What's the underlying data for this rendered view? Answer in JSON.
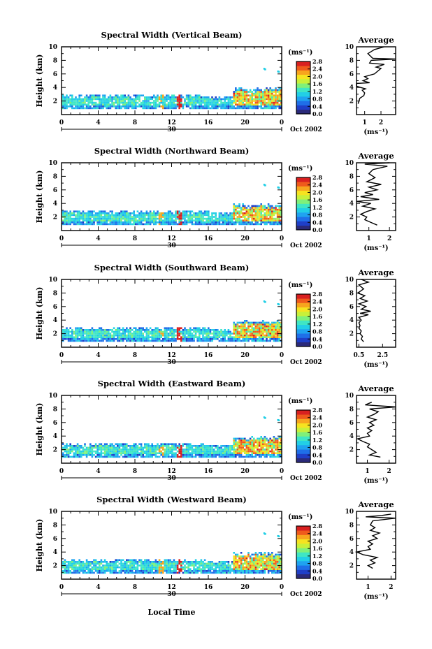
{
  "chart_data": {
    "type": "heatmap",
    "xlabel": "Local Time",
    "date_label": "Oct 2002",
    "day_label": "30",
    "x_ticks": [
      "0",
      "4",
      "8",
      "12",
      "16",
      "20",
      "0"
    ],
    "y_ticks": [
      "2",
      "4",
      "6",
      "8",
      "10"
    ],
    "ylabel": "Height (km)",
    "ylim": [
      0,
      10
    ],
    "xlim": [
      0,
      24
    ],
    "colorbar": {
      "unit_label": "(ms⁻¹)",
      "ticks": [
        "0.0",
        "0.4",
        "0.8",
        "1.2",
        "1.6",
        "2.0",
        "2.4",
        "2.8"
      ],
      "range": [
        0,
        2.8
      ]
    },
    "profile": {
      "title": "Average",
      "unit_label": "(ms⁻¹)"
    },
    "panels": [
      {
        "title": "Spectral Width (Vertical Beam)",
        "profile_ticks": [
          "1",
          "2"
        ],
        "profile_xlim": [
          0.5,
          2.9
        ],
        "profile": [
          [
            0.6,
            1.6
          ],
          [
            0.65,
            2.0
          ],
          [
            0.7,
            2.4
          ],
          [
            0.95,
            2.8
          ],
          [
            1.0,
            3.2
          ],
          [
            0.85,
            3.6
          ],
          [
            1.05,
            3.8
          ],
          [
            0.75,
            4.0
          ],
          [
            0.5,
            4.2
          ],
          [
            0.5,
            4.6
          ],
          [
            1.3,
            4.7
          ],
          [
            0.9,
            5.0
          ],
          [
            1.2,
            5.3
          ],
          [
            1.0,
            5.6
          ],
          [
            1.6,
            6.0
          ],
          [
            1.8,
            6.4
          ],
          [
            2.0,
            6.8
          ],
          [
            1.7,
            7.0
          ],
          [
            2.2,
            7.4
          ],
          [
            1.3,
            7.6
          ],
          [
            1.4,
            8.0
          ],
          [
            2.9,
            8.2
          ],
          [
            1.5,
            8.3
          ],
          [
            1.2,
            9.0
          ],
          [
            1.6,
            9.6
          ],
          [
            2.2,
            10.0
          ]
        ],
        "variant": 0
      },
      {
        "title": "Spectral Width (Northward Beam)",
        "profile_ticks": [
          "1",
          "2"
        ],
        "profile_xlim": [
          0.4,
          2.3
        ],
        "profile": [
          [
            1.4,
            0.8
          ],
          [
            1.1,
            1.2
          ],
          [
            0.8,
            1.6
          ],
          [
            0.9,
            2.0
          ],
          [
            0.6,
            2.4
          ],
          [
            0.9,
            2.8
          ],
          [
            1.3,
            3.2
          ],
          [
            0.7,
            3.6
          ],
          [
            1.1,
            4.0
          ],
          [
            0.4,
            4.3
          ],
          [
            1.5,
            4.6
          ],
          [
            0.6,
            5.0
          ],
          [
            1.2,
            5.3
          ],
          [
            0.8,
            5.6
          ],
          [
            1.4,
            6.0
          ],
          [
            1.0,
            6.4
          ],
          [
            1.6,
            6.8
          ],
          [
            0.9,
            7.2
          ],
          [
            1.3,
            7.8
          ],
          [
            1.0,
            8.4
          ],
          [
            1.2,
            9.0
          ],
          [
            1.9,
            9.5
          ],
          [
            0.8,
            9.8
          ],
          [
            2.0,
            10.0
          ]
        ],
        "variant": 1
      },
      {
        "title": "Spectral Width (Southward Beam)",
        "profile_ticks": [
          "0.5",
          "2.5"
        ],
        "profile_xlim": [
          0.3,
          3.6
        ],
        "profile": [
          [
            0.9,
            0.8
          ],
          [
            0.7,
            1.2
          ],
          [
            0.8,
            1.6
          ],
          [
            0.6,
            2.0
          ],
          [
            0.7,
            2.4
          ],
          [
            0.5,
            2.8
          ],
          [
            0.6,
            3.2
          ],
          [
            0.5,
            3.6
          ],
          [
            0.7,
            4.0
          ],
          [
            0.5,
            4.4
          ],
          [
            1.3,
            4.8
          ],
          [
            0.6,
            5.0
          ],
          [
            1.5,
            5.3
          ],
          [
            0.7,
            5.6
          ],
          [
            1.1,
            6.0
          ],
          [
            0.5,
            6.4
          ],
          [
            1.2,
            6.8
          ],
          [
            0.6,
            7.2
          ],
          [
            1.0,
            7.6
          ],
          [
            0.4,
            8.0
          ],
          [
            0.9,
            8.6
          ],
          [
            0.5,
            9.2
          ],
          [
            1.3,
            9.6
          ],
          [
            0.7,
            10.0
          ]
        ],
        "variant": 2
      },
      {
        "title": "Spectral Width (Eastward Beam)",
        "profile_ticks": [
          "1",
          "2"
        ],
        "profile_xlim": [
          0.5,
          2.3
        ],
        "profile": [
          [
            1.6,
            0.9
          ],
          [
            1.1,
            1.2
          ],
          [
            1.4,
            1.6
          ],
          [
            1.2,
            2.0
          ],
          [
            1.0,
            2.4
          ],
          [
            1.1,
            2.8
          ],
          [
            0.8,
            3.2
          ],
          [
            0.55,
            3.6
          ],
          [
            1.1,
            4.0
          ],
          [
            1.0,
            4.4
          ],
          [
            1.2,
            4.8
          ],
          [
            1.0,
            5.2
          ],
          [
            1.3,
            5.6
          ],
          [
            1.1,
            6.0
          ],
          [
            1.4,
            6.4
          ],
          [
            1.0,
            6.8
          ],
          [
            1.3,
            7.2
          ],
          [
            1.5,
            7.6
          ],
          [
            1.1,
            8.0
          ],
          [
            2.3,
            8.3
          ],
          [
            0.9,
            8.6
          ],
          [
            1.2,
            9.0
          ]
        ],
        "variant": 3
      },
      {
        "title": "Spectral Width (Westward Beam)",
        "profile_ticks": [
          "1",
          "2"
        ],
        "profile_xlim": [
          0.5,
          2.2
        ],
        "profile": [
          [
            1.2,
            1.6
          ],
          [
            1.0,
            2.0
          ],
          [
            1.3,
            2.4
          ],
          [
            1.1,
            2.8
          ],
          [
            1.4,
            3.2
          ],
          [
            0.8,
            3.6
          ],
          [
            0.5,
            4.0
          ],
          [
            1.1,
            4.4
          ],
          [
            1.0,
            4.8
          ],
          [
            1.2,
            5.2
          ],
          [
            1.0,
            5.6
          ],
          [
            1.4,
            6.0
          ],
          [
            1.2,
            6.4
          ],
          [
            1.5,
            6.8
          ],
          [
            1.1,
            7.2
          ],
          [
            1.3,
            7.6
          ],
          [
            1.1,
            8.0
          ],
          [
            1.2,
            8.6
          ],
          [
            2.2,
            9.0
          ],
          [
            0.9,
            9.2
          ],
          [
            1.6,
            9.4
          ],
          [
            2.0,
            9.6
          ]
        ],
        "variant": 4
      }
    ]
  },
  "colors": {
    "colormap": [
      "#2b2a7a",
      "#1f3fc8",
      "#1f6fe8",
      "#1fa3f0",
      "#22cfe6",
      "#3fe6c4",
      "#7ff07a",
      "#c8f03a",
      "#f6e320",
      "#f7a51e",
      "#ef5a1c",
      "#d92020"
    ]
  }
}
